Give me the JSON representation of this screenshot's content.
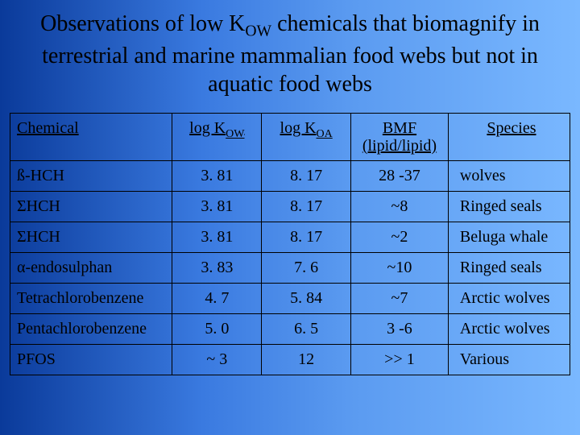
{
  "title_html": "Observations of low K<sub>OW</sub> chemicals that biomagnify in terrestrial and marine mammalian food webs but not in aquatic food webs",
  "table": {
    "columns": [
      {
        "html": "Chemical",
        "class": "c0"
      },
      {
        "html": "log K<sub>OW</sub>",
        "class": "c1"
      },
      {
        "html": "log K<sub>OA</sub>",
        "class": "c2"
      },
      {
        "html": "BMF<br>(lipid/lipid)",
        "class": "c3"
      },
      {
        "html": "Species",
        "class": "c4"
      }
    ],
    "rows": [
      [
        "ß-HCH",
        "3. 81",
        "8. 17",
        "28 -37",
        "wolves"
      ],
      [
        "ΣHCH",
        "3. 81",
        "8. 17",
        "~8",
        "Ringed seals"
      ],
      [
        "ΣHCH",
        "3. 81",
        "8. 17",
        "~2",
        "Beluga whale"
      ],
      [
        "α-endosulphan",
        "3. 83",
        "7. 6",
        "~10",
        "Ringed seals"
      ],
      [
        "Tetrachlorobenzene",
        "4. 7",
        "5. 84",
        "~7",
        "Arctic wolves"
      ],
      [
        "Pentachlorobenzene",
        "5. 0",
        "6. 5",
        "3 -6",
        "Arctic wolves"
      ],
      [
        "PFOS",
        "~ 3",
        "12",
        ">> 1",
        "Various"
      ]
    ]
  }
}
